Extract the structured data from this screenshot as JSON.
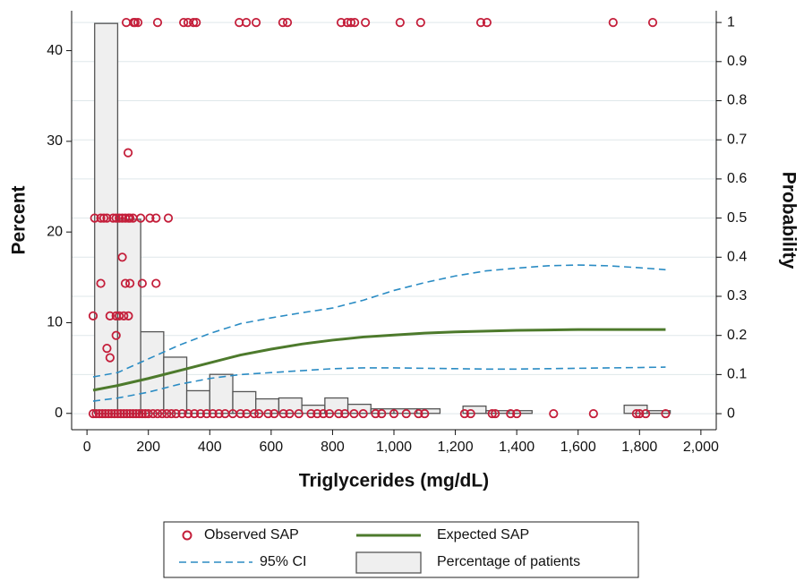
{
  "chart_data": {
    "type": "combo",
    "x_label": "Triglycerides (mg/dL)",
    "y_label": "Percent",
    "y2_label": "Probability",
    "xlim": [
      -50,
      2050
    ],
    "ylim": [
      -1.8,
      44.4
    ],
    "y2lim": [
      -0.041,
      1.03
    ],
    "xticks": [
      0,
      200,
      400,
      600,
      800,
      {
        "value": 1000,
        "label": "1,000"
      },
      {
        "value": 1200,
        "label": "1,200"
      },
      {
        "value": 1400,
        "label": "1,400"
      },
      {
        "value": 1600,
        "label": "1,600"
      },
      {
        "value": 1800,
        "label": "1,800"
      },
      {
        "value": 2000,
        "label": "2,000"
      }
    ],
    "yticks": [
      0,
      10,
      20,
      30,
      40
    ],
    "y2ticks": [
      0,
      0.1,
      0.2,
      0.3,
      0.4,
      0.5,
      0.6,
      0.7,
      0.8,
      0.9,
      1
    ],
    "grid": true,
    "histogram": {
      "name": "Percentage of patients",
      "color": "#efefef",
      "edge_color": "#555555",
      "bins": [
        25,
        100,
        175,
        250,
        325,
        400,
        475,
        550,
        625,
        700,
        775,
        850,
        925,
        1000,
        1075,
        1150,
        1225,
        1300,
        1375,
        1450,
        1525,
        1600,
        1675,
        1750,
        1825,
        1900
      ],
      "values": [
        43,
        21.4,
        9,
        6.2,
        2.5,
        4.3,
        2.4,
        1.6,
        1.7,
        0.9,
        1.7,
        1.0,
        0.5,
        0.5,
        0.5,
        0,
        0.8,
        0.3,
        0.3,
        0,
        0,
        0,
        0,
        0.9,
        0.3
      ]
    },
    "series": [
      {
        "name": "Observed SAP",
        "type": "scatter",
        "axis": "y2",
        "color": "#c41e3a",
        "x": [
          128,
          152,
          157,
          166,
          230,
          315,
          329,
          347,
          356,
          496,
          519,
          551,
          638,
          653,
          828,
          848,
          860,
          872,
          907,
          1020,
          1087,
          1283,
          1303,
          1714,
          1843,
          134,
          25,
          45,
          55,
          65,
          85,
          95,
          105,
          115,
          125,
          135,
          140,
          150,
          175,
          205,
          225,
          265,
          115,
          45,
          125,
          140,
          180,
          225,
          20,
          75,
          95,
          105,
          120,
          135,
          95,
          65,
          75,
          20,
          30,
          40,
          50,
          60,
          70,
          80,
          90,
          100,
          110,
          120,
          130,
          140,
          150,
          160,
          170,
          180,
          190,
          200,
          215,
          230,
          245,
          260,
          275,
          290,
          310,
          330,
          350,
          370,
          390,
          410,
          430,
          450,
          475,
          500,
          520,
          545,
          560,
          590,
          610,
          640,
          660,
          690,
          730,
          750,
          770,
          790,
          820,
          840,
          870,
          900,
          940,
          960,
          1000,
          1040,
          1080,
          1100,
          1230,
          1250,
          1320,
          1330,
          1380,
          1400,
          1520,
          1650,
          1790,
          1800,
          1820,
          1885
        ],
        "values": [
          1,
          1,
          1,
          1,
          1,
          1,
          1,
          1,
          1,
          1,
          1,
          1,
          1,
          1,
          1,
          1,
          1,
          1,
          1,
          1,
          1,
          1,
          1,
          1,
          1,
          0.667,
          0.5,
          0.5,
          0.5,
          0.5,
          0.5,
          0.5,
          0.5,
          0.5,
          0.5,
          0.5,
          0.5,
          0.5,
          0.5,
          0.5,
          0.5,
          0.5,
          0.4,
          0.333,
          0.333,
          0.333,
          0.333,
          0.333,
          0.25,
          0.25,
          0.25,
          0.25,
          0.25,
          0.25,
          0.2,
          0.167,
          0.143,
          0,
          0,
          0,
          0,
          0,
          0,
          0,
          0,
          0,
          0,
          0,
          0,
          0,
          0,
          0,
          0,
          0,
          0,
          0,
          0,
          0,
          0,
          0,
          0,
          0,
          0,
          0,
          0,
          0,
          0,
          0,
          0,
          0,
          0,
          0,
          0,
          0,
          0,
          0,
          0,
          0,
          0,
          0,
          0,
          0,
          0,
          0,
          0,
          0,
          0,
          0,
          0,
          0,
          0,
          0,
          0,
          0,
          0,
          0,
          0,
          0,
          0,
          0,
          0,
          0,
          0,
          0,
          0,
          0
        ]
      },
      {
        "name": "Expected SAP",
        "type": "line",
        "axis": "y2",
        "color": "#4d7a2c",
        "x": [
          20,
          100,
          200,
          300,
          400,
          500,
          600,
          700,
          800,
          900,
          1000,
          1100,
          1200,
          1300,
          1400,
          1500,
          1600,
          1700,
          1800,
          1885
        ],
        "values": [
          0.06,
          0.072,
          0.09,
          0.11,
          0.13,
          0.15,
          0.165,
          0.178,
          0.188,
          0.196,
          0.201,
          0.206,
          0.209,
          0.211,
          0.213,
          0.214,
          0.215,
          0.215,
          0.215,
          0.215
        ]
      },
      {
        "name": "95% CI",
        "type": "band",
        "axis": "y2",
        "color": "#2b8cc4",
        "x": [
          20,
          100,
          200,
          300,
          400,
          500,
          600,
          700,
          800,
          900,
          1000,
          1100,
          1200,
          1300,
          1400,
          1500,
          1600,
          1700,
          1800,
          1885
        ],
        "upper": [
          0.094,
          0.105,
          0.14,
          0.175,
          0.205,
          0.23,
          0.245,
          0.258,
          0.27,
          0.29,
          0.315,
          0.335,
          0.352,
          0.365,
          0.372,
          0.378,
          0.38,
          0.378,
          0.373,
          0.368
        ],
        "lower": [
          0.032,
          0.04,
          0.055,
          0.075,
          0.09,
          0.1,
          0.105,
          0.11,
          0.115,
          0.117,
          0.117,
          0.116,
          0.115,
          0.114,
          0.114,
          0.115,
          0.116,
          0.117,
          0.118,
          0.119
        ]
      }
    ]
  }
}
